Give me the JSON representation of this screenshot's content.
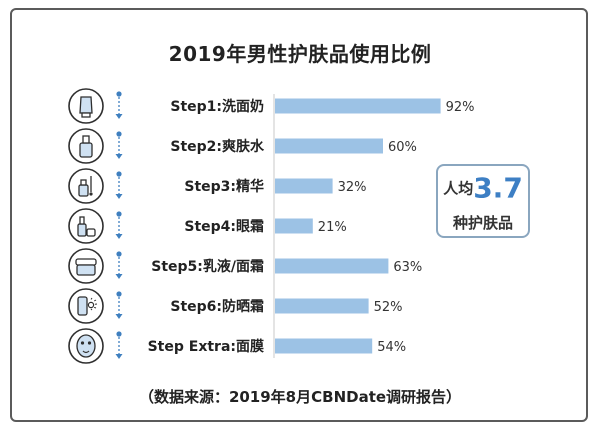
{
  "title": "2019年男性护肤品使用比例",
  "source": "（数据来源：2019年8月CBNDate调研报告）",
  "callout": {
    "prefix": "人均",
    "value": "3.7",
    "suffix": "种护肤品"
  },
  "colors": {
    "bar": "#9cc2e5",
    "accent": "#3d7fc4",
    "icon_stroke": "#2f2f2f",
    "icon_fill": "#cfe1f2",
    "connector": "#3f7fbf"
  },
  "chart_data": {
    "type": "bar",
    "orientation": "horizontal",
    "title": "2019年男性护肤品使用比例",
    "categories": [
      "Step1:洗面奶",
      "Step2:爽肤水",
      "Step3:精华",
      "Step4:眼霜",
      "Step5:乳液/面霜",
      "Step6:防晒霜",
      "Step  Extra:面膜"
    ],
    "values": [
      92,
      60,
      32,
      21,
      63,
      52,
      54
    ],
    "value_labels": [
      "92%",
      "60%",
      "32%",
      "21%",
      "63%",
      "52%",
      "54%"
    ],
    "unit": "%",
    "xlim": [
      0,
      100
    ],
    "xlabel": "",
    "ylabel": "",
    "grid": false,
    "legend": "none",
    "icons": [
      "cleanser-tube-icon",
      "toner-bottle-icon",
      "serum-dropper-icon",
      "eye-cream-icon",
      "cream-jar-icon",
      "sunscreen-icon",
      "face-mask-icon"
    ]
  }
}
